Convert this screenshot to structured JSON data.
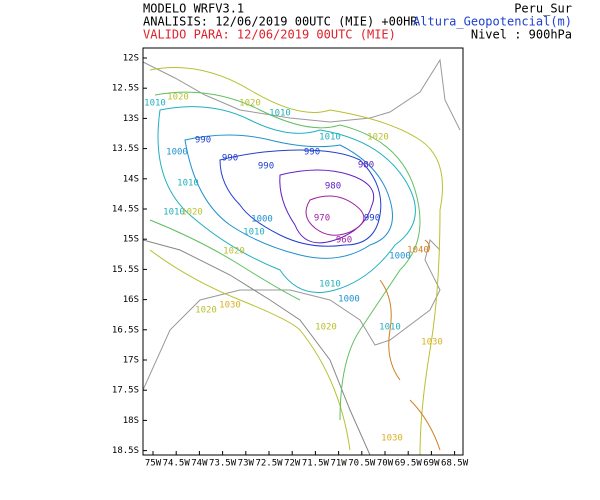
{
  "header": {
    "model": "MODELO WRFV3.1",
    "analysis": "ANALISIS: 12/06/2019 00UTC (MIE) +00HR",
    "valid": "VALIDO PARA: 12/06/2019 00UTC (MIE)",
    "domain": "Peru_Sur",
    "variable": "Altura_Geopotencial(m)",
    "level": "Nivel : 900hPa"
  },
  "map": {
    "lat_labels": [
      "12S",
      "12.5S",
      "13S",
      "13.5S",
      "14S",
      "14.5S",
      "15S",
      "15.5S",
      "16S",
      "16.5S",
      "17S",
      "17.5S",
      "18S",
      "18.5S"
    ],
    "lon_labels": [
      "75W",
      "74.5W",
      "74W",
      "73.5W",
      "73W",
      "72.5W",
      "72W",
      "71.5W",
      "71W",
      "70.5W",
      "70W",
      "69.5W",
      "69W",
      "68.5W"
    ],
    "contour_labels": [
      "1010",
      "1020",
      "1020",
      "1010",
      "1010",
      "1020",
      "990",
      "1000",
      "990",
      "990",
      "980",
      "990",
      "980",
      "1010",
      "970",
      "990",
      "960",
      "1000",
      "1010",
      "1010",
      "1020",
      "1000",
      "1020",
      "1010",
      "1000",
      "1030",
      "1020",
      "1020",
      "1010",
      "1030",
      "1040",
      "1030"
    ]
  }
}
